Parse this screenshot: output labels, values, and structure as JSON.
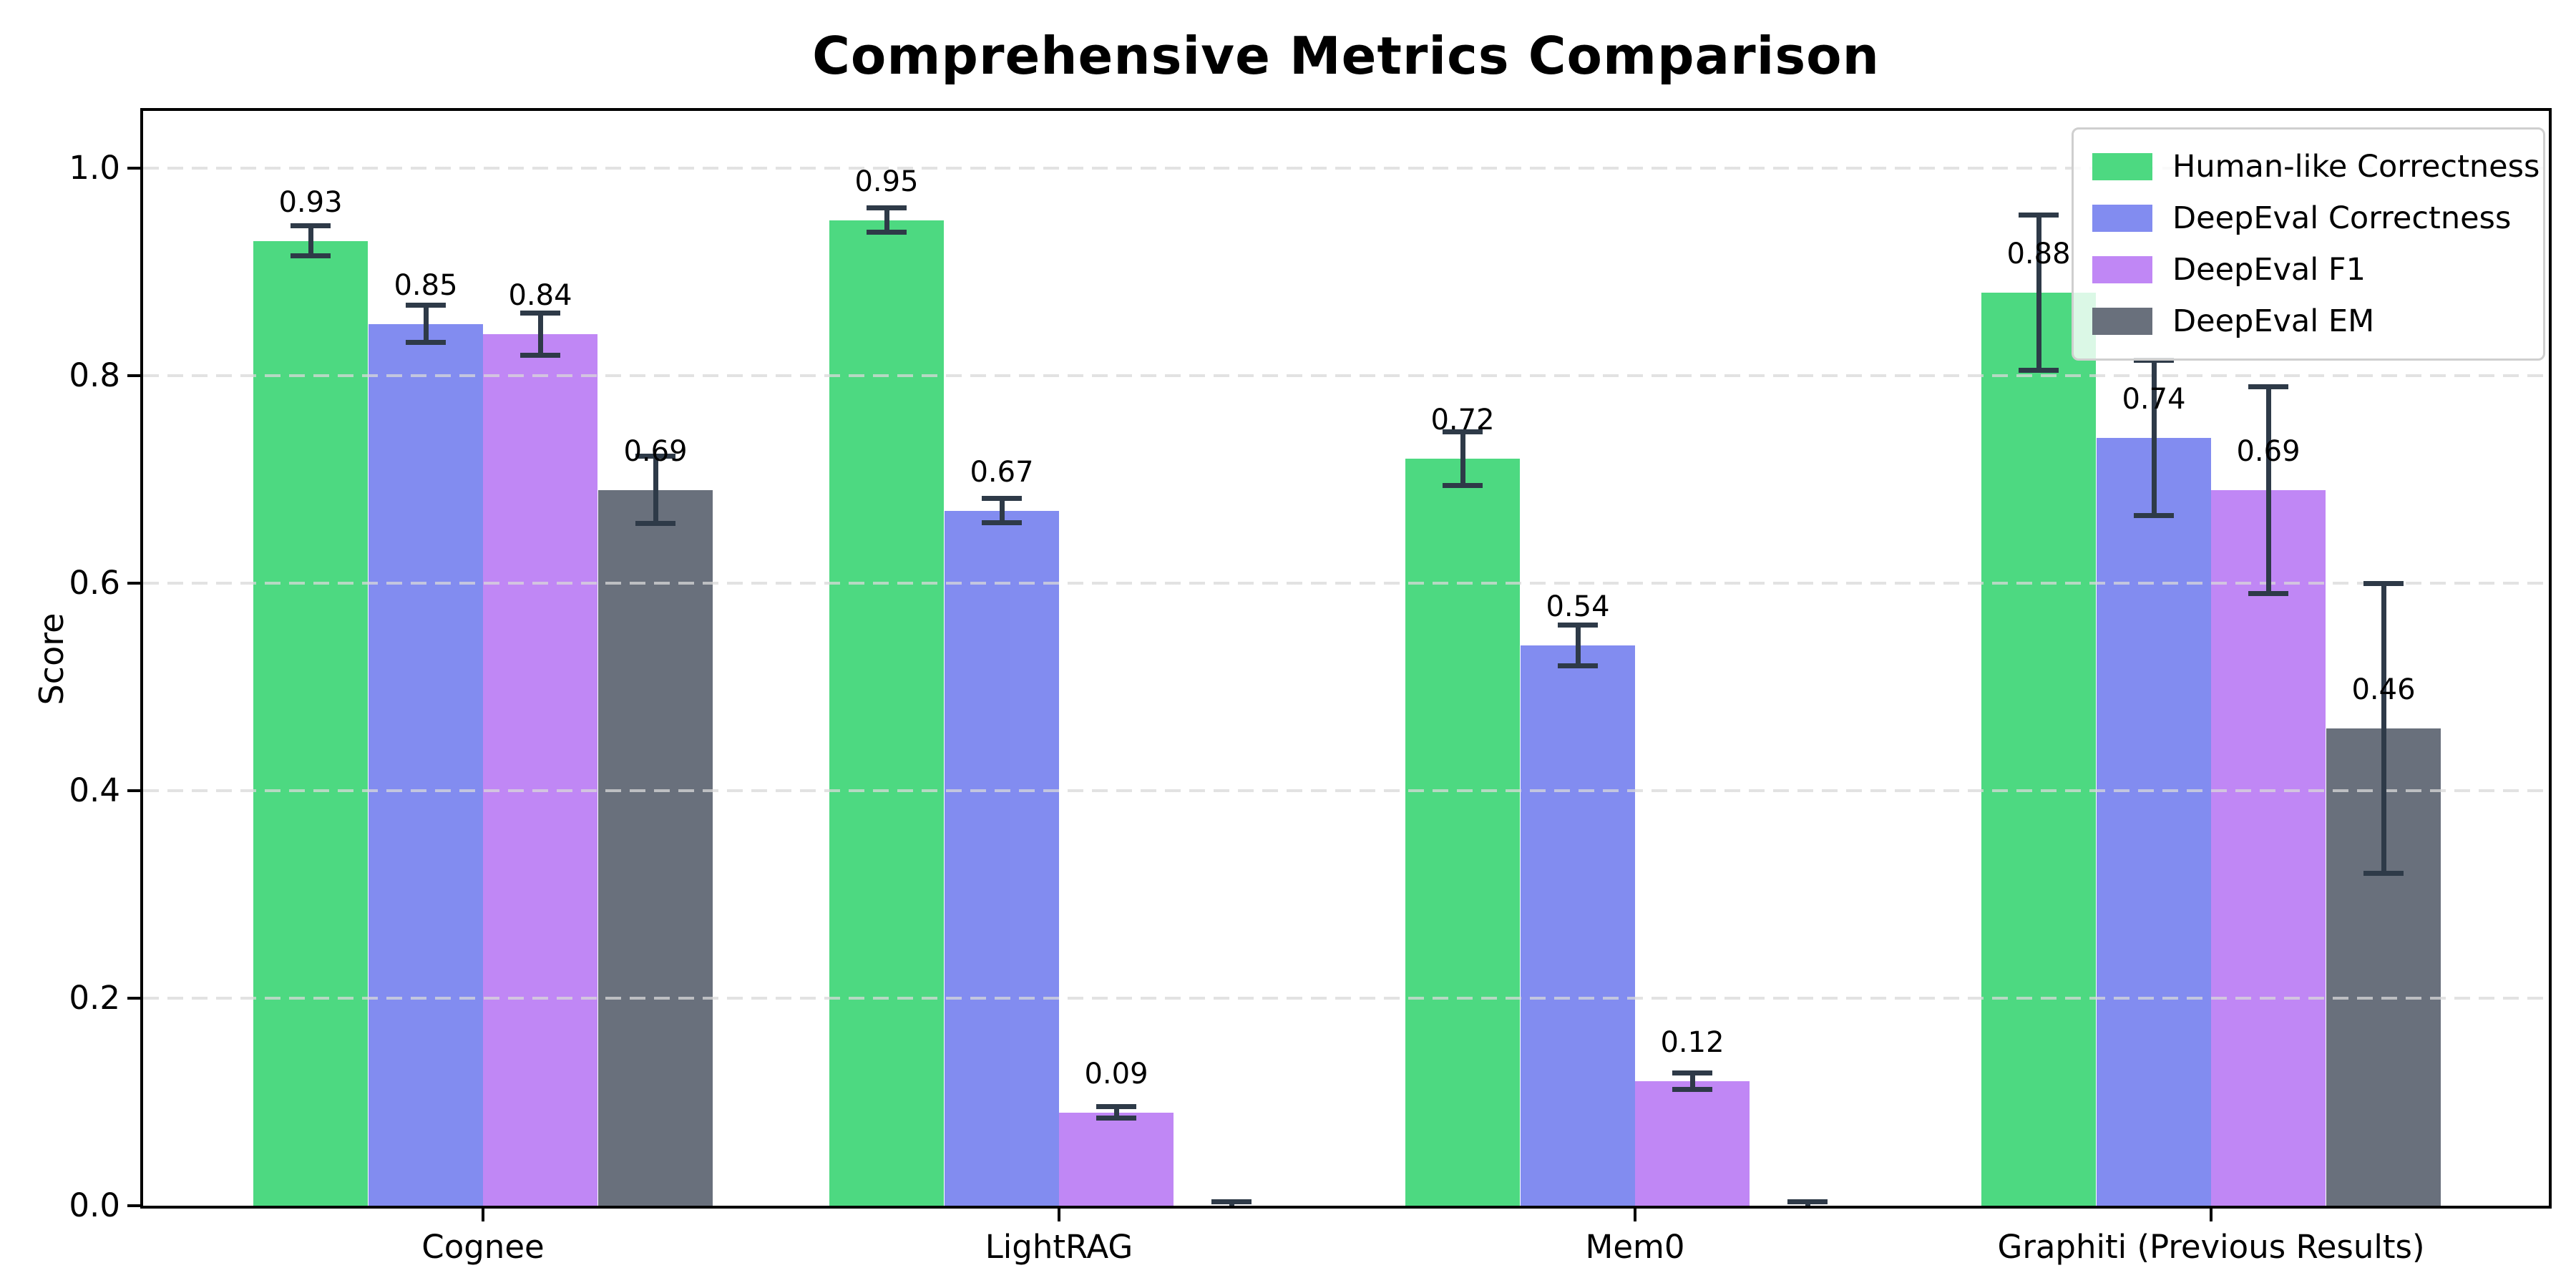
{
  "chart_data": {
    "type": "bar",
    "title": "Comprehensive Metrics Comparison",
    "ylabel": "Score",
    "xlabel": "",
    "categories": [
      "Cognee",
      "LightRAG",
      "Mem0",
      "Graphiti (Previous Results)"
    ],
    "series": [
      {
        "name": "Human-like Correctness",
        "color": "#4dd981",
        "values": [
          0.93,
          0.95,
          0.72,
          0.88
        ],
        "errors": [
          0.015,
          0.012,
          0.026,
          0.075
        ],
        "labels": [
          "0.93",
          "0.95",
          "0.72",
          "0.88"
        ]
      },
      {
        "name": "DeepEval Correctness",
        "color": "#828cf0",
        "values": [
          0.85,
          0.67,
          0.54,
          0.74
        ],
        "errors": [
          0.018,
          0.012,
          0.02,
          0.075
        ],
        "labels": [
          "0.85",
          "0.67",
          "0.54",
          "0.74"
        ]
      },
      {
        "name": "DeepEval F1",
        "color": "#c087f5",
        "values": [
          0.84,
          0.09,
          0.12,
          0.69
        ],
        "errors": [
          0.021,
          0.006,
          0.008,
          0.1
        ],
        "labels": [
          "0.84",
          "0.09",
          "0.12",
          "0.69"
        ]
      },
      {
        "name": "DeepEval EM",
        "color": "#69707c",
        "values": [
          0.69,
          0.0,
          0.0,
          0.46
        ],
        "errors": [
          0.033,
          0.004,
          0.004,
          0.14
        ],
        "labels": [
          "0.69",
          null,
          null,
          "0.46"
        ]
      }
    ],
    "yticks": [
      "0.0",
      "0.2",
      "0.4",
      "0.6",
      "0.8",
      "1.0"
    ],
    "ylim": [
      0,
      1.055
    ],
    "grid": "horizontal-dashed",
    "legend_position": "upper-right",
    "colors": {
      "error_bar": "#2e3a48",
      "grid": "#d9d9d9",
      "axis": "#000000",
      "background": "#ffffff"
    }
  }
}
